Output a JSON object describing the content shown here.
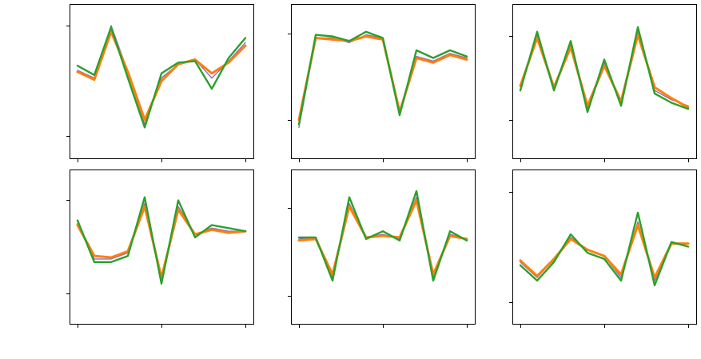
{
  "colors": {
    "noisy": "#9467bd",
    "reference": "#ff7f0e",
    "smoothed": "#2ca02c"
  },
  "chart_data": [
    {
      "type": "line",
      "x": [
        0,
        10,
        20,
        30,
        40,
        50,
        60,
        70,
        80,
        90,
        100
      ],
      "ylim": [
        0,
        1
      ],
      "series": [
        {
          "values": [
            0.57,
            0.52,
            0.86,
            0.56,
            0.22,
            0.52,
            0.61,
            0.64,
            0.52,
            0.63,
            0.75
          ]
        },
        {
          "values": [
            0.56,
            0.51,
            0.82,
            0.56,
            0.25,
            0.5,
            0.61,
            0.64,
            0.55,
            0.62,
            0.73
          ]
        },
        {
          "values": [
            0.6,
            0.54,
            0.85,
            0.52,
            0.2,
            0.55,
            0.62,
            0.63,
            0.45,
            0.65,
            0.78
          ]
        }
      ]
    },
    {
      "type": "line",
      "x": [
        0,
        10,
        20,
        30,
        40,
        50,
        60,
        70,
        80,
        90,
        100
      ],
      "ylim": [
        0,
        1
      ],
      "series": [
        {
          "values": [
            0.2,
            0.78,
            0.78,
            0.75,
            0.8,
            0.78,
            0.28,
            0.66,
            0.63,
            0.68,
            0.65
          ]
        },
        {
          "values": [
            0.25,
            0.78,
            0.77,
            0.76,
            0.79,
            0.77,
            0.3,
            0.65,
            0.62,
            0.67,
            0.64
          ]
        },
        {
          "values": [
            0.22,
            0.8,
            0.79,
            0.76,
            0.82,
            0.78,
            0.28,
            0.7,
            0.65,
            0.7,
            0.66
          ]
        }
      ]
    },
    {
      "type": "line",
      "x": [
        0,
        10,
        20,
        30,
        40,
        50,
        60,
        70,
        80,
        90,
        100
      ],
      "ylim": [
        0,
        1
      ],
      "series": [
        {
          "values": [
            0.45,
            0.8,
            0.45,
            0.74,
            0.32,
            0.62,
            0.36,
            0.82,
            0.44,
            0.38,
            0.34
          ]
        },
        {
          "values": [
            0.47,
            0.78,
            0.46,
            0.72,
            0.34,
            0.6,
            0.37,
            0.8,
            0.46,
            0.39,
            0.33
          ]
        },
        {
          "values": [
            0.44,
            0.82,
            0.44,
            0.76,
            0.3,
            0.64,
            0.34,
            0.85,
            0.42,
            0.36,
            0.32
          ]
        }
      ]
    },
    {
      "type": "line",
      "x": [
        0,
        10,
        20,
        30,
        40,
        50,
        60,
        70,
        80,
        90,
        100
      ],
      "ylim": [
        0,
        1
      ],
      "series": [
        {
          "values": [
            0.65,
            0.42,
            0.42,
            0.46,
            0.78,
            0.28,
            0.76,
            0.58,
            0.62,
            0.6,
            0.6
          ]
        },
        {
          "values": [
            0.64,
            0.44,
            0.43,
            0.47,
            0.76,
            0.3,
            0.74,
            0.58,
            0.61,
            0.59,
            0.6
          ]
        },
        {
          "values": [
            0.67,
            0.4,
            0.4,
            0.44,
            0.82,
            0.26,
            0.8,
            0.56,
            0.64,
            0.62,
            0.6
          ]
        }
      ]
    },
    {
      "type": "line",
      "x": [
        0,
        10,
        20,
        30,
        40,
        50,
        60,
        70,
        80,
        90,
        100
      ],
      "ylim": [
        0,
        1
      ],
      "series": [
        {
          "values": [
            0.55,
            0.56,
            0.3,
            0.78,
            0.56,
            0.58,
            0.55,
            0.82,
            0.3,
            0.58,
            0.55
          ]
        },
        {
          "values": [
            0.54,
            0.55,
            0.32,
            0.76,
            0.56,
            0.57,
            0.56,
            0.8,
            0.32,
            0.57,
            0.55
          ]
        },
        {
          "values": [
            0.56,
            0.56,
            0.28,
            0.82,
            0.55,
            0.6,
            0.54,
            0.86,
            0.28,
            0.6,
            0.54
          ]
        }
      ]
    },
    {
      "type": "line",
      "x": [
        0,
        10,
        20,
        30,
        40,
        50,
        60,
        70,
        80,
        90,
        100
      ],
      "ylim": [
        0,
        1
      ],
      "series": [
        {
          "values": [
            0.4,
            0.3,
            0.42,
            0.56,
            0.48,
            0.44,
            0.3,
            0.66,
            0.28,
            0.52,
            0.52
          ]
        },
        {
          "values": [
            0.41,
            0.31,
            0.42,
            0.55,
            0.48,
            0.44,
            0.32,
            0.64,
            0.3,
            0.52,
            0.52
          ]
        },
        {
          "values": [
            0.38,
            0.28,
            0.4,
            0.58,
            0.46,
            0.42,
            0.28,
            0.72,
            0.25,
            0.53,
            0.5
          ]
        }
      ]
    }
  ]
}
